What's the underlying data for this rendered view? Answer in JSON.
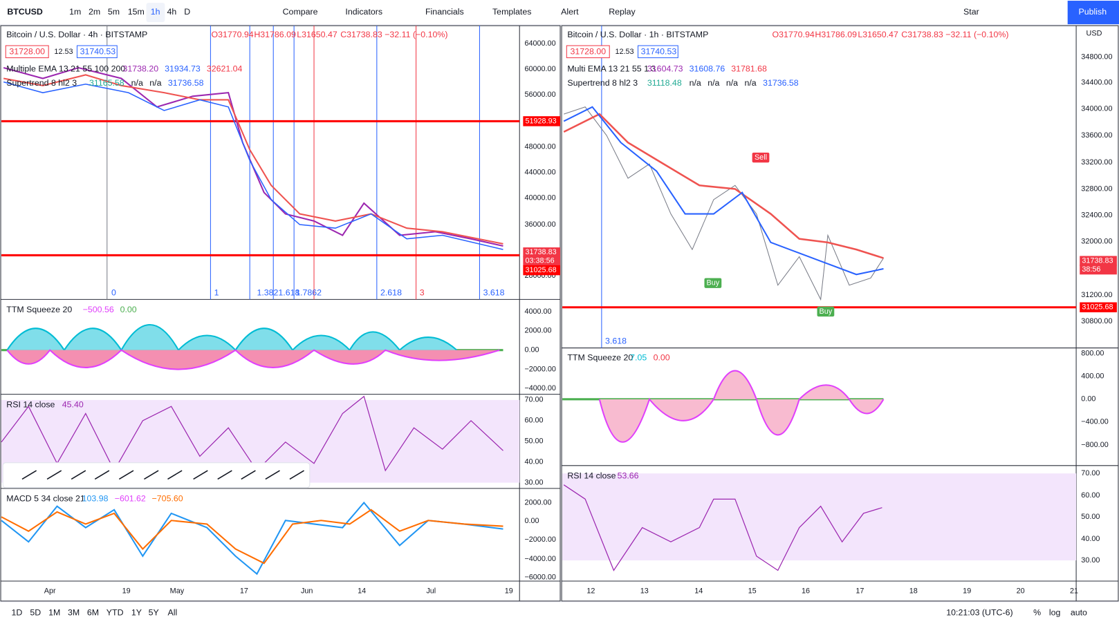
{
  "toolbar": {
    "symbol": "BTCUSD",
    "intervals": [
      "1m",
      "2m",
      "5m",
      "15m",
      "1h",
      "4h",
      "D"
    ],
    "tools": [
      "Compare",
      "Indicators",
      "Financials",
      "Templates",
      "Alert",
      "Replay"
    ],
    "star": "Star",
    "publish": "Publish"
  },
  "left": {
    "title": "Bitcoin / U.S. Dollar · 4h · BITSTAMP",
    "ohlc": [
      "O31770.94",
      "H31786.09",
      "L31650.47",
      "C31738.83",
      "−32.11 (−0.10%)"
    ],
    "bid": "31728.00",
    "spread": "12.53",
    "ask": "31740.53",
    "studies": [
      {
        "name": "Multiple EMA 13 21 55 100 200",
        "values": [
          "31738.20",
          "31934.73",
          "32621.04"
        ]
      },
      {
        "name": "Supertrend 8 hl2 3",
        "values": [
          "31165.58",
          "n/a",
          "n/a",
          "31736.58"
        ]
      }
    ],
    "price_axis": [
      "64000.00",
      "60000.00",
      "56000.00",
      "48000.00",
      "44000.00",
      "40000.00",
      "36000.00",
      "28000.00"
    ],
    "price_tags": [
      "51928.93",
      "31738.83",
      "03:38:56",
      "31025.68"
    ],
    "fib": [
      "0",
      "1",
      "1.382",
      "1.618",
      "1.7862",
      "2.618",
      "3",
      "3.618"
    ],
    "squeeze": {
      "name": "TTM Squeeze 20",
      "values": [
        "−500.56",
        "0.00"
      ],
      "axis": [
        "4000.00",
        "2000.00",
        "0.00",
        "−2000.00",
        "−4000.00"
      ]
    },
    "rsi": {
      "name": "RSI 14 close",
      "values": [
        "45.40"
      ],
      "axis": [
        "70.00",
        "60.00",
        "50.00",
        "40.00",
        "30.00"
      ]
    },
    "macd": {
      "name": "MACD 5 34 close 21",
      "values": [
        "103.98",
        "−601.62",
        "−705.60"
      ],
      "axis": [
        "2000.00",
        "0.00",
        "−2000.00",
        "−4000.00",
        "−6000.00"
      ]
    },
    "x_axis": [
      "Apr",
      "19",
      "May",
      "17",
      "Jun",
      "14",
      "Jul",
      "19"
    ]
  },
  "right": {
    "title": "Bitcoin / U.S. Dollar · 1h · BITSTAMP",
    "ohlc": [
      "O31770.94",
      "H31786.09",
      "L31650.47",
      "C31738.83",
      "−32.11 (−0.10%)"
    ],
    "bid": "31728.00",
    "spread": "12.53",
    "ask": "31740.53",
    "currency": "USD",
    "studies": [
      {
        "name": "Multi EMA 13 21 55 1 3",
        "values": [
          "31604.73",
          "31608.76",
          "31781.68"
        ]
      },
      {
        "name": "Supertrend 8 hl2 3",
        "values": [
          "31118.48",
          "n/a",
          "n/a",
          "n/a",
          "n/a",
          "31736.58"
        ]
      }
    ],
    "price_axis": [
      "34800.00",
      "34400.00",
      "34000.00",
      "33600.00",
      "33200.00",
      "32800.00",
      "32400.00",
      "32000.00",
      "31200.00",
      "30800.00"
    ],
    "price_tags": [
      "31738.83",
      "38:56",
      "31025.68"
    ],
    "fib": [
      "3.618"
    ],
    "signals": [
      "Sell",
      "Buy",
      "Buy"
    ],
    "squeeze": {
      "name": "TTM Squeeze 20",
      "values": [
        "7.05",
        "0.00"
      ],
      "axis": [
        "800.00",
        "400.00",
        "0.00",
        "−400.00",
        "−800.00"
      ]
    },
    "rsi": {
      "name": "RSI 14 close",
      "values": [
        "53.66"
      ],
      "axis": [
        "70.00",
        "60.00",
        "50.00",
        "40.00",
        "30.00"
      ]
    },
    "x_axis": [
      "12",
      "13",
      "14",
      "15",
      "16",
      "17",
      "18",
      "19",
      "20",
      "21"
    ]
  },
  "bottom": {
    "ranges": [
      "1D",
      "5D",
      "1M",
      "3M",
      "6M",
      "YTD",
      "1Y",
      "5Y",
      "All"
    ],
    "time": "10:21:03 (UTC-6)",
    "options": [
      "%",
      "log",
      "auto"
    ]
  }
}
